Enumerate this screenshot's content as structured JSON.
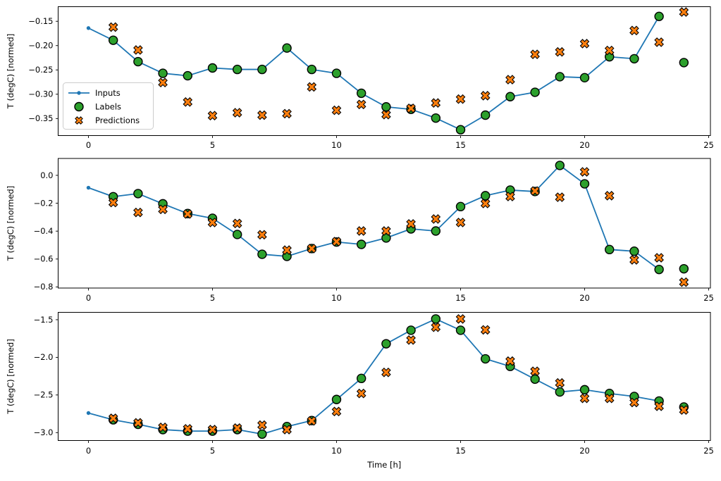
{
  "figure": {
    "xlabel": "Time [h]",
    "ylabel": "T (degC) [normed]",
    "background_color": "#ffffff",
    "spine_color": "#000000",
    "legend": {
      "position": "upper-left-of-first-subplot",
      "border_color": "#cccccc",
      "items": [
        {
          "label": "Inputs",
          "marker": "line-with-dot",
          "color": "#1f77b4"
        },
        {
          "label": "Labels",
          "marker": "filled-circle",
          "color": "#2ca02c"
        },
        {
          "label": "Predictions",
          "marker": "filled-x",
          "color": "#ff7f0e"
        }
      ]
    }
  },
  "chart_data": [
    {
      "type": "line",
      "subplot": "top",
      "ylabel": "T (degC) [normed]",
      "xlabel": "",
      "xlim": [
        -1.221,
        25.07
      ],
      "ylim": [
        -0.385,
        -0.12
      ],
      "x_ticks": [
        0,
        5,
        10,
        15,
        20,
        25
      ],
      "x_tick_labels": [
        "0",
        "5",
        "10",
        "15",
        "20",
        "25"
      ],
      "y_ticks": [
        -0.15,
        -0.2,
        -0.25,
        -0.3,
        -0.35
      ],
      "y_tick_labels": [
        "−0.15",
        "−0.20",
        "−0.25",
        "−0.30",
        "−0.35"
      ],
      "grid": false,
      "series": [
        {
          "name": "Inputs",
          "style": "line-dot",
          "color": "#1f77b4",
          "x": [
            0,
            1,
            2,
            3,
            4,
            5,
            6,
            7,
            8,
            9,
            10,
            11,
            12,
            13,
            14,
            15,
            16,
            17,
            18,
            19,
            20,
            21,
            22,
            23
          ],
          "y": [
            -0.164,
            -0.189,
            -0.233,
            -0.257,
            -0.262,
            -0.246,
            -0.249,
            -0.249,
            -0.205,
            -0.249,
            -0.257,
            -0.298,
            -0.326,
            -0.331,
            -0.349,
            -0.373,
            -0.343,
            -0.305,
            -0.296,
            -0.264,
            -0.266,
            -0.223,
            -0.227,
            -0.14
          ]
        },
        {
          "name": "Labels",
          "style": "scatter-circle",
          "color": "#2ca02c",
          "x": [
            1,
            2,
            3,
            4,
            5,
            6,
            7,
            8,
            9,
            10,
            11,
            12,
            13,
            14,
            15,
            16,
            17,
            18,
            19,
            20,
            21,
            22,
            23,
            24
          ],
          "y": [
            -0.189,
            -0.233,
            -0.257,
            -0.262,
            -0.246,
            -0.249,
            -0.249,
            -0.205,
            -0.249,
            -0.257,
            -0.298,
            -0.326,
            -0.331,
            -0.349,
            -0.373,
            -0.343,
            -0.305,
            -0.296,
            -0.264,
            -0.266,
            -0.223,
            -0.227,
            -0.14,
            -0.235
          ]
        },
        {
          "name": "Predictions",
          "style": "scatter-x",
          "color": "#ff7f0e",
          "x": [
            1,
            2,
            3,
            4,
            5,
            6,
            7,
            8,
            9,
            10,
            11,
            12,
            13,
            14,
            15,
            16,
            17,
            18,
            19,
            20,
            21,
            22,
            23,
            24
          ],
          "y": [
            -0.162,
            -0.209,
            -0.276,
            -0.316,
            -0.344,
            -0.338,
            -0.343,
            -0.34,
            -0.285,
            -0.333,
            -0.321,
            -0.342,
            -0.329,
            -0.318,
            -0.31,
            -0.303,
            -0.27,
            -0.218,
            -0.213,
            -0.196,
            -0.21,
            -0.169,
            -0.193,
            -0.131
          ]
        }
      ]
    },
    {
      "type": "line",
      "subplot": "middle",
      "ylabel": "T (degC) [normed]",
      "xlabel": "",
      "xlim": [
        -1.221,
        25.07
      ],
      "ylim": [
        -0.808,
        0.121
      ],
      "x_ticks": [
        0,
        5,
        10,
        15,
        20,
        25
      ],
      "x_tick_labels": [
        "0",
        "5",
        "10",
        "15",
        "20",
        "25"
      ],
      "y_ticks": [
        0.0,
        -0.2,
        -0.4,
        -0.6,
        -0.8
      ],
      "y_tick_labels": [
        "0.0",
        "−0.2",
        "−0.4",
        "−0.6",
        "−0.8"
      ],
      "grid": false,
      "series": [
        {
          "name": "Inputs",
          "style": "line-dot",
          "color": "#1f77b4",
          "x": [
            0,
            1,
            2,
            3,
            4,
            5,
            6,
            7,
            8,
            9,
            10,
            11,
            12,
            13,
            14,
            15,
            16,
            17,
            18,
            19,
            20,
            21,
            22,
            23
          ],
          "y": [
            -0.089,
            -0.153,
            -0.131,
            -0.204,
            -0.274,
            -0.308,
            -0.424,
            -0.566,
            -0.581,
            -0.525,
            -0.478,
            -0.495,
            -0.449,
            -0.384,
            -0.399,
            -0.224,
            -0.146,
            -0.106,
            -0.116,
            0.071,
            -0.061,
            -0.532,
            -0.544,
            -0.675
          ]
        },
        {
          "name": "Labels",
          "style": "scatter-circle",
          "color": "#2ca02c",
          "x": [
            1,
            2,
            3,
            4,
            5,
            6,
            7,
            8,
            9,
            10,
            11,
            12,
            13,
            14,
            15,
            16,
            17,
            18,
            19,
            20,
            21,
            22,
            23,
            24
          ],
          "y": [
            -0.153,
            -0.131,
            -0.204,
            -0.274,
            -0.308,
            -0.424,
            -0.566,
            -0.581,
            -0.525,
            -0.478,
            -0.495,
            -0.449,
            -0.384,
            -0.399,
            -0.224,
            -0.146,
            -0.106,
            -0.116,
            0.071,
            -0.061,
            -0.532,
            -0.544,
            -0.675,
            -0.67
          ]
        },
        {
          "name": "Predictions",
          "style": "scatter-x",
          "color": "#ff7f0e",
          "x": [
            1,
            2,
            3,
            4,
            5,
            6,
            7,
            8,
            9,
            10,
            11,
            12,
            13,
            14,
            15,
            16,
            17,
            18,
            19,
            20,
            21,
            22,
            23,
            24
          ],
          "y": [
            -0.195,
            -0.266,
            -0.244,
            -0.277,
            -0.338,
            -0.345,
            -0.426,
            -0.536,
            -0.525,
            -0.475,
            -0.399,
            -0.399,
            -0.348,
            -0.313,
            -0.338,
            -0.202,
            -0.152,
            -0.112,
            -0.157,
            0.025,
            -0.146,
            -0.606,
            -0.591,
            -0.766
          ]
        }
      ]
    },
    {
      "type": "line",
      "subplot": "bottom",
      "ylabel": "T (degC) [normed]",
      "xlabel": "Time [h]",
      "xlim": [
        -1.221,
        25.07
      ],
      "ylim": [
        -3.105,
        -1.402
      ],
      "x_ticks": [
        0,
        5,
        10,
        15,
        20,
        25
      ],
      "x_tick_labels": [
        "0",
        "5",
        "10",
        "15",
        "20",
        "25"
      ],
      "y_ticks": [
        -1.5,
        -2.0,
        -2.5,
        -3.0
      ],
      "y_tick_labels": [
        "−1.5",
        "−2.0",
        "−2.5",
        "−3.0"
      ],
      "grid": false,
      "series": [
        {
          "name": "Inputs",
          "style": "line-dot",
          "color": "#1f77b4",
          "x": [
            0,
            1,
            2,
            3,
            4,
            5,
            6,
            7,
            8,
            9,
            10,
            11,
            12,
            13,
            14,
            15,
            16,
            17,
            18,
            19,
            20,
            21,
            22,
            23
          ],
          "y": [
            -2.74,
            -2.83,
            -2.89,
            -2.96,
            -2.98,
            -2.98,
            -2.96,
            -3.02,
            -2.92,
            -2.84,
            -2.56,
            -2.28,
            -1.82,
            -1.64,
            -1.49,
            -1.64,
            -2.02,
            -2.12,
            -2.29,
            -2.46,
            -2.43,
            -2.48,
            -2.52,
            -2.58
          ]
        },
        {
          "name": "Labels",
          "style": "scatter-circle",
          "color": "#2ca02c",
          "x": [
            1,
            2,
            3,
            4,
            5,
            6,
            7,
            8,
            9,
            10,
            11,
            12,
            13,
            14,
            15,
            16,
            17,
            18,
            19,
            20,
            21,
            22,
            23,
            24
          ],
          "y": [
            -2.83,
            -2.89,
            -2.96,
            -2.98,
            -2.98,
            -2.96,
            -3.02,
            -2.92,
            -2.84,
            -2.56,
            -2.28,
            -1.82,
            -1.64,
            -1.49,
            -1.64,
            -2.02,
            -2.12,
            -2.29,
            -2.46,
            -2.43,
            -2.48,
            -2.52,
            -2.58,
            -2.66
          ]
        },
        {
          "name": "Predictions",
          "style": "scatter-x",
          "color": "#ff7f0e",
          "x": [
            1,
            2,
            3,
            4,
            5,
            6,
            7,
            8,
            9,
            10,
            11,
            12,
            13,
            14,
            15,
            16,
            17,
            18,
            19,
            20,
            21,
            22,
            23,
            24
          ],
          "y": [
            -2.81,
            -2.87,
            -2.93,
            -2.95,
            -2.96,
            -2.94,
            -2.9,
            -2.96,
            -2.845,
            -2.72,
            -2.48,
            -2.2,
            -1.77,
            -1.6,
            -1.49,
            -1.635,
            -2.05,
            -2.185,
            -2.34,
            -2.545,
            -2.545,
            -2.6,
            -2.65,
            -2.7
          ]
        }
      ]
    }
  ]
}
